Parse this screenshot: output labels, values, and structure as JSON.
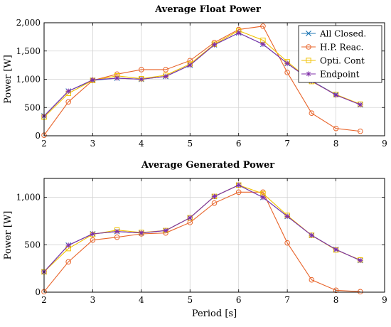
{
  "chart_data": [
    {
      "type": "line",
      "title": "Average Float Power",
      "xlabel": "",
      "ylabel": "Power [W]",
      "xlim": [
        2,
        9
      ],
      "ylim": [
        0,
        2000
      ],
      "xticks": [
        2,
        3,
        4,
        5,
        6,
        7,
        8,
        9
      ],
      "yticks": [
        0,
        500,
        1000,
        1500,
        2000
      ],
      "ytick_labels": [
        "0",
        "500",
        "1,000",
        "1,500",
        "2,000"
      ],
      "grid": true,
      "legend": "top-right",
      "x": [
        2,
        2.5,
        3,
        3.5,
        4,
        4.5,
        5,
        5.5,
        6,
        6.5,
        7,
        7.5,
        8,
        8.5
      ],
      "series": [
        {
          "name": "All Closed.",
          "color": "#1f77b4",
          "marker": "x",
          "values": [
            350,
            790,
            980,
            1020,
            1000,
            1050,
            1250,
            1610,
            1820,
            1620,
            1280,
            970,
            730,
            550
          ]
        },
        {
          "name": "H.P. Reac.",
          "color": "#e8642a",
          "marker": "circle",
          "values": [
            10,
            600,
            980,
            1090,
            1170,
            1170,
            1330,
            1650,
            1880,
            1940,
            1120,
            400,
            130,
            80
          ]
        },
        {
          "name": "Opti. Cont",
          "color": "#f2c200",
          "marker": "square",
          "values": [
            330,
            750,
            980,
            1060,
            1010,
            1070,
            1270,
            1620,
            1860,
            1690,
            1310,
            960,
            730,
            560
          ]
        },
        {
          "name": "Endpoint",
          "color": "#7f2fa8",
          "marker": "star",
          "values": [
            350,
            790,
            990,
            1020,
            1000,
            1050,
            1250,
            1610,
            1820,
            1620,
            1280,
            970,
            720,
            550
          ]
        }
      ]
    },
    {
      "type": "line",
      "title": "Average Generated Power",
      "xlabel": "Period [s]",
      "ylabel": "Power [W]",
      "xlim": [
        2,
        9
      ],
      "ylim": [
        0,
        1200
      ],
      "xticks": [
        2,
        3,
        4,
        5,
        6,
        7,
        8,
        9
      ],
      "yticks": [
        0,
        500,
        1000
      ],
      "ytick_labels": [
        "0",
        "500",
        "1,000"
      ],
      "grid": true,
      "x": [
        2,
        2.5,
        3,
        3.5,
        4,
        4.5,
        5,
        5.5,
        6,
        6.5,
        7,
        7.5,
        8,
        8.5
      ],
      "series": [
        {
          "name": "All Closed.",
          "color": "#1f77b4",
          "marker": "x",
          "values": [
            215,
            495,
            615,
            640,
            625,
            650,
            785,
            1010,
            1130,
            1000,
            800,
            600,
            450,
            335
          ]
        },
        {
          "name": "H.P. Reac.",
          "color": "#e8642a",
          "marker": "circle",
          "values": [
            5,
            320,
            550,
            580,
            615,
            625,
            735,
            940,
            1055,
            1055,
            520,
            130,
            20,
            5
          ]
        },
        {
          "name": "Opti. Cont",
          "color": "#f2c200",
          "marker": "square",
          "values": [
            215,
            460,
            610,
            655,
            630,
            650,
            785,
            1010,
            1130,
            1040,
            810,
            600,
            445,
            340
          ]
        },
        {
          "name": "Endpoint",
          "color": "#7f2fa8",
          "marker": "star",
          "values": [
            215,
            495,
            615,
            640,
            625,
            650,
            785,
            1010,
            1130,
            1000,
            800,
            600,
            450,
            335
          ]
        }
      ]
    }
  ]
}
